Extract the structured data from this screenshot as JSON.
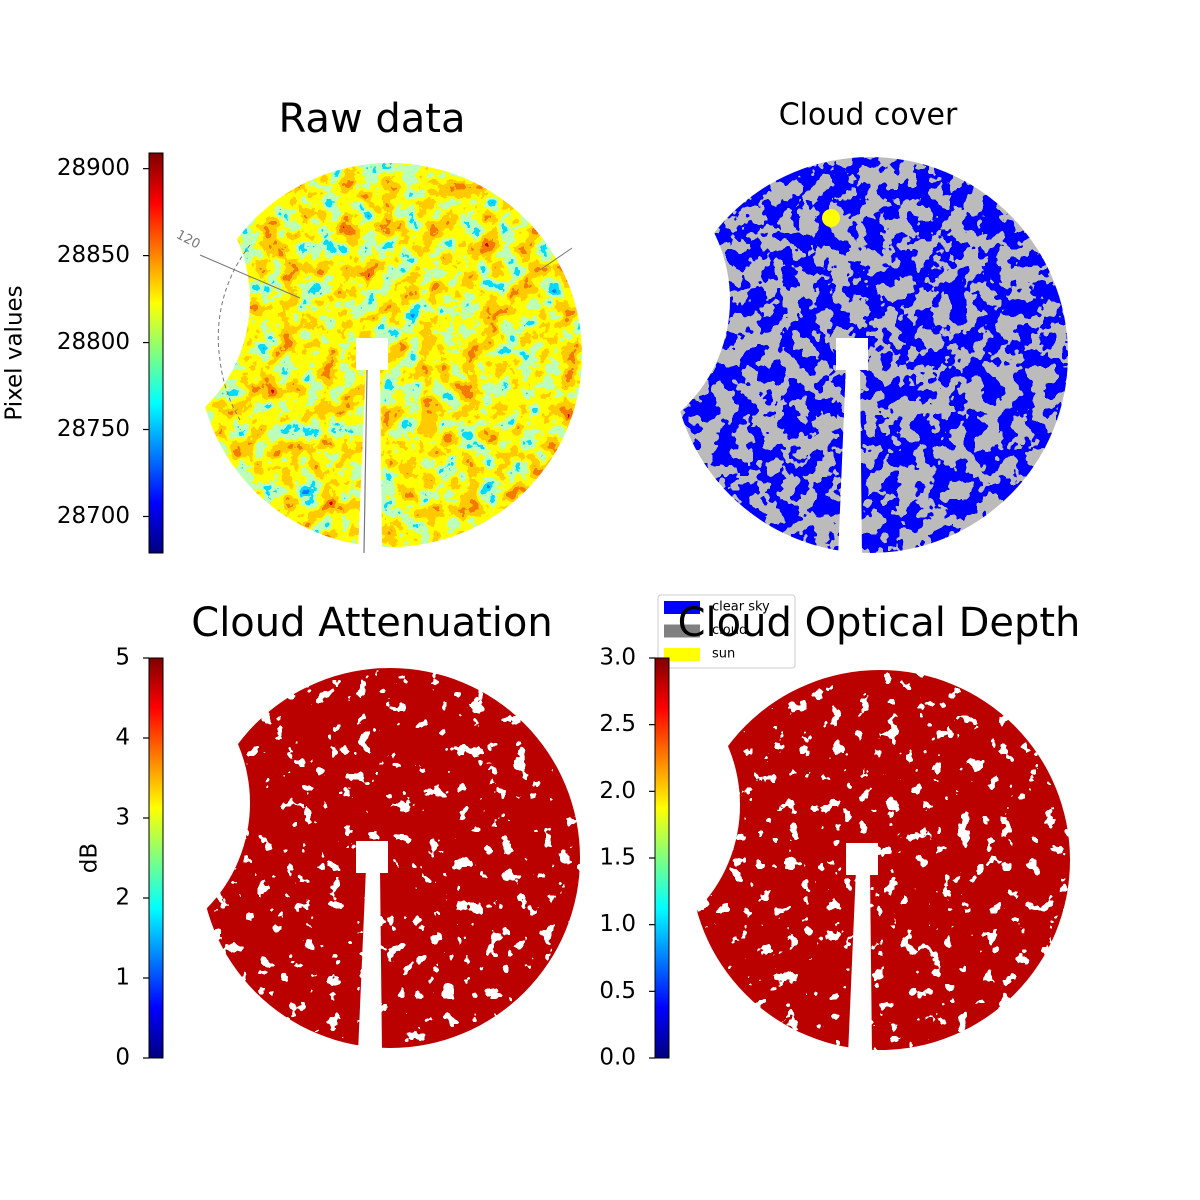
{
  "chart_data": [
    {
      "type": "image",
      "title": "Raw data",
      "colorbar_label": "Pixel values",
      "colormap": "jet",
      "texture": "jet",
      "ylim": [
        28679,
        28909
      ],
      "yticks": [
        28700,
        28750,
        28800,
        28850,
        28900
      ],
      "annotations": [
        "120"
      ]
    },
    {
      "type": "categorical",
      "title": "Cloud cover",
      "texture": "cover",
      "series": [
        {
          "name": "clear sky",
          "color": "#0000ff"
        },
        {
          "name": "cloud",
          "color": "#808080"
        },
        {
          "name": "sun",
          "color": "#ffff00"
        }
      ]
    },
    {
      "type": "image",
      "title": "Cloud Attenuation",
      "colorbar_label": "dB",
      "colormap": "jet",
      "texture": "maroon",
      "ylim": [
        0,
        5
      ],
      "yticks": [
        0,
        1,
        2,
        3,
        4,
        5
      ]
    },
    {
      "type": "image",
      "title": "Cloud Optical Depth",
      "colormap": "jet",
      "texture": "maroon",
      "ylim": [
        0,
        3
      ],
      "yticks": [
        {
          "value": 0,
          "label": "0.0"
        },
        {
          "value": 0.5,
          "label": "0.5"
        },
        {
          "value": 1,
          "label": "1.0"
        },
        {
          "value": 1.5,
          "label": "1.5"
        },
        {
          "value": 2,
          "label": "2.0"
        },
        {
          "value": 2.5,
          "label": "2.5"
        },
        {
          "value": 3,
          "label": "3.0"
        }
      ]
    }
  ]
}
